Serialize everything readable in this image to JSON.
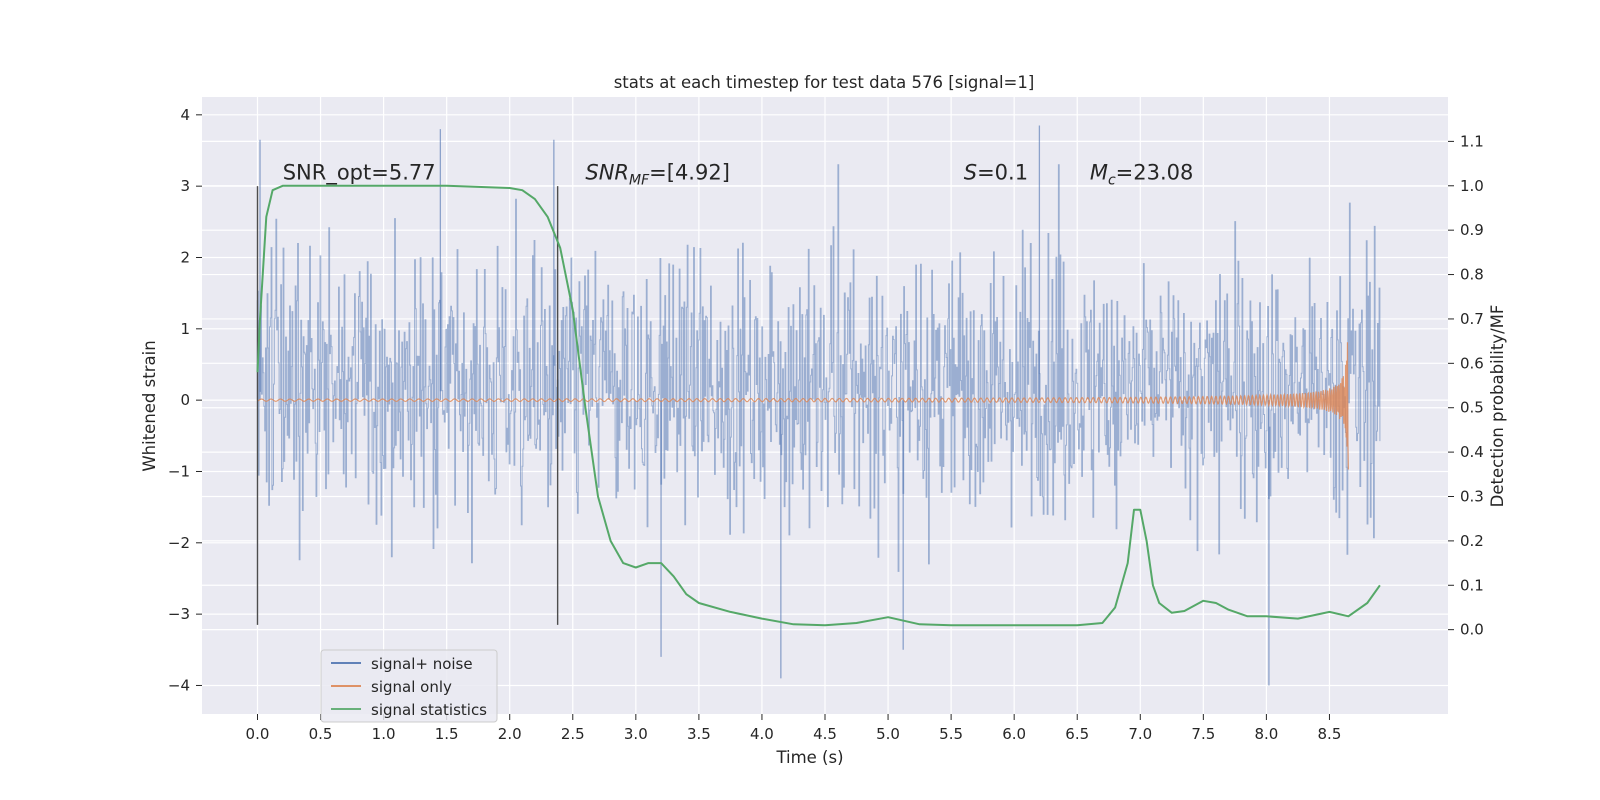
{
  "chart_data": {
    "type": "line",
    "title": "stats at each timestep for test data 576 [signal=1]",
    "xlabel": "Time (s)",
    "ylabel": "Whitened strain",
    "y2label": "Detection probability/MF",
    "xlim": [
      -0.44,
      9.44
    ],
    "ylim": [
      -4.4,
      4.25
    ],
    "y2lim": [
      -0.19,
      1.2
    ],
    "xticks": [
      0.0,
      0.5,
      1.0,
      1.5,
      2.0,
      2.5,
      3.0,
      3.5,
      4.0,
      4.5,
      5.0,
      5.5,
      6.0,
      6.5,
      7.0,
      7.5,
      8.0,
      8.5
    ],
    "xtick_labels": [
      "0.0",
      "0.5",
      "1.0",
      "1.5",
      "2.0",
      "2.5",
      "3.0",
      "3.5",
      "4.0",
      "4.5",
      "5.0",
      "5.5",
      "6.0",
      "6.5",
      "7.0",
      "7.5",
      "8.0",
      "8.5"
    ],
    "yticks": [
      4,
      3,
      2,
      1,
      0,
      -1,
      -2,
      -3,
      -4
    ],
    "ytick_labels": [
      "4",
      "3",
      "2",
      "1",
      "0",
      "−1",
      "−2",
      "−3",
      "−4"
    ],
    "y2ticks": [
      1.1,
      1.0,
      0.9,
      0.8,
      0.7,
      0.6,
      0.5,
      0.4,
      0.3,
      0.2,
      0.1,
      0.0
    ],
    "y2tick_labels": [
      "1.1",
      "1.0",
      "0.9",
      "0.8",
      "0.7",
      "0.6",
      "0.5",
      "0.4",
      "0.3",
      "0.2",
      "0.1",
      "0.0"
    ],
    "annotations": [
      {
        "name": "snr-opt",
        "x": 0.2,
        "y": 3.05,
        "text": "SNR_opt=5.77"
      },
      {
        "name": "snr-mf",
        "x": 2.6,
        "y": 3.05,
        "text": "SNR_MF=[4.92]"
      },
      {
        "name": "s-value",
        "x": 5.6,
        "y": 3.05,
        "text": "S=0.1"
      },
      {
        "name": "chirp-mass",
        "x": 6.6,
        "y": 3.05,
        "text": "M_c=23.08"
      }
    ],
    "vertical_markers": [
      {
        "x": 0.0,
        "y0": -3.15,
        "y1": 3.0
      },
      {
        "x": 2.38,
        "y0": -3.15,
        "y1": 3.0
      }
    ],
    "series": [
      {
        "name": "signal+ noise",
        "axis": "left",
        "color": "#4c72b0",
        "style": "dense noise band, approx. 95% within [-1.8, 2.2], peaks from -4.0 to 3.9",
        "x_range": [
          0.0,
          8.9
        ],
        "peaks_x": [
          0.0,
          0.02,
          1.45,
          2.35,
          3.2,
          4.15,
          5.12,
          6.2,
          8.02
        ],
        "peaks_y": [
          1.4,
          3.65,
          3.8,
          3.65,
          -3.6,
          -3.9,
          -3.5,
          3.85,
          -4.0
        ]
      },
      {
        "name": "signal only",
        "axis": "left",
        "color": "#dd8452",
        "style": "chirp oscillation growing toward merger",
        "x_range": [
          0.0,
          8.65
        ],
        "merger_x": 8.65,
        "peak_amplitude": 1.1
      },
      {
        "name": "signal statistics",
        "axis": "right",
        "color": "#55a868",
        "x": [
          0.0,
          0.02,
          0.07,
          0.12,
          0.2,
          0.3,
          0.5,
          1.0,
          1.5,
          2.0,
          2.1,
          2.2,
          2.3,
          2.4,
          2.5,
          2.6,
          2.7,
          2.8,
          2.9,
          3.0,
          3.1,
          3.2,
          3.3,
          3.4,
          3.5,
          3.75,
          4.0,
          4.25,
          4.5,
          4.75,
          5.0,
          5.25,
          5.5,
          6.0,
          6.25,
          6.5,
          6.7,
          6.8,
          6.9,
          6.95,
          7.0,
          7.05,
          7.1,
          7.15,
          7.25,
          7.35,
          7.5,
          7.6,
          7.7,
          7.85,
          8.0,
          8.25,
          8.5,
          8.65,
          8.8,
          8.9
        ],
        "values": [
          0.58,
          0.7,
          0.93,
          0.99,
          1.0,
          1.0,
          1.0,
          1.0,
          1.0,
          0.995,
          0.99,
          0.97,
          0.93,
          0.86,
          0.72,
          0.5,
          0.3,
          0.2,
          0.15,
          0.14,
          0.15,
          0.15,
          0.12,
          0.08,
          0.06,
          0.04,
          0.025,
          0.012,
          0.01,
          0.015,
          0.028,
          0.012,
          0.01,
          0.01,
          0.01,
          0.01,
          0.015,
          0.05,
          0.15,
          0.27,
          0.27,
          0.2,
          0.1,
          0.06,
          0.038,
          0.042,
          0.065,
          0.06,
          0.045,
          0.03,
          0.03,
          0.025,
          0.04,
          0.03,
          0.06,
          0.1
        ]
      }
    ],
    "legend": {
      "placement": "lower-left",
      "entries": [
        {
          "label": "signal+ noise",
          "color": "#4c72b0"
        },
        {
          "label": "signal only",
          "color": "#dd8452"
        },
        {
          "label": "signal statistics",
          "color": "#55a868"
        }
      ]
    }
  }
}
